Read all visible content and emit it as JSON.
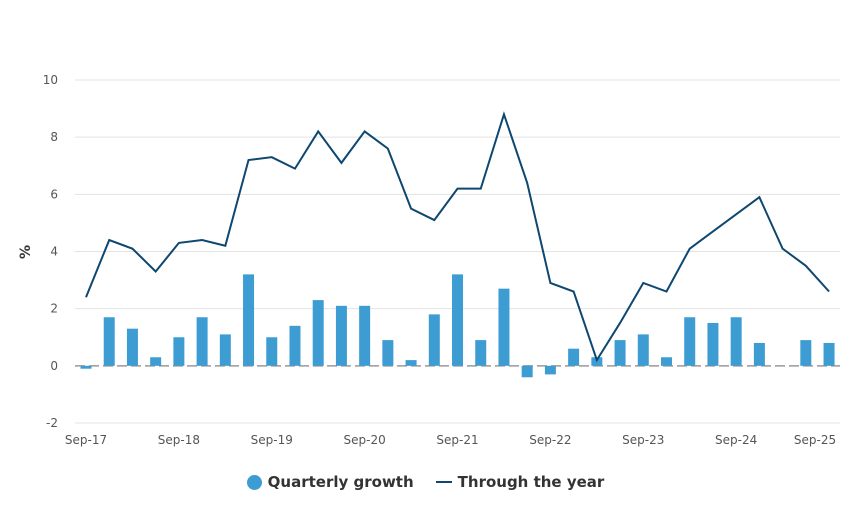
{
  "chart_data": {
    "type": "bar+line",
    "ylabel": "%",
    "ylim": [
      -2,
      10
    ],
    "yticks": [
      -2,
      0,
      2,
      4,
      6,
      8,
      10
    ],
    "grid": true,
    "legend_position": "bottom",
    "categories": [
      "Sep-17",
      "Dec-17",
      "Mar-18",
      "Jun-18",
      "Sep-18",
      "Dec-18",
      "Mar-19",
      "Jun-19",
      "Sep-19",
      "Dec-19",
      "Mar-20",
      "Jun-20",
      "Sep-20",
      "Dec-20",
      "Mar-21",
      "Jun-21",
      "Sep-21",
      "Dec-21",
      "Mar-22",
      "Jun-22",
      "Sep-22",
      "Dec-22",
      "Mar-23",
      "Jun-23",
      "Sep-23",
      "Dec-23",
      "Mar-24",
      "Jun-24",
      "Sep-24",
      "Dec-24",
      "Mar-25",
      "Jun-25",
      "Sep-25"
    ],
    "xtick_labels": [
      "Sep-17",
      "Sep-18",
      "Sep-19",
      "Sep-20",
      "Sep-21",
      "Sep-22",
      "Sep-23",
      "Sep-24",
      "Sep-25"
    ],
    "series": [
      {
        "name": "Quarterly growth",
        "type": "bar",
        "color": "#3d9dd3",
        "values": [
          -0.1,
          1.7,
          1.3,
          0.3,
          1.0,
          1.7,
          1.1,
          3.2,
          1.0,
          1.4,
          2.3,
          2.1,
          2.1,
          0.9,
          0.2,
          1.8,
          3.2,
          0.9,
          2.7,
          -0.4,
          -0.3,
          0.6,
          0.3,
          0.9,
          1.1,
          0.3,
          1.7,
          1.5,
          1.7,
          0.8,
          0.0,
          0.9,
          0.8
        ]
      },
      {
        "name": "Through the year",
        "type": "line",
        "color": "#0e4770",
        "values": [
          2.4,
          4.4,
          4.1,
          3.3,
          4.3,
          4.4,
          4.2,
          7.2,
          7.3,
          6.9,
          8.2,
          7.1,
          8.2,
          7.6,
          5.5,
          5.1,
          6.2,
          6.2,
          8.8,
          6.4,
          2.9,
          2.6,
          0.2,
          1.5,
          2.9,
          2.6,
          4.1,
          4.7,
          5.3,
          5.9,
          4.1,
          3.5,
          2.6
        ]
      }
    ]
  }
}
